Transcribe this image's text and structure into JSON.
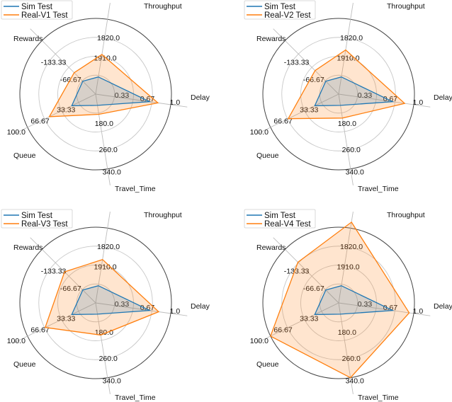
{
  "chart_data": [
    {
      "type": "radar",
      "axes": [
        "Throughput",
        "Delay",
        "Travel_Time",
        "Queue",
        "Rewards"
      ],
      "tick_labels": {
        "Throughput": [
          "1910.0",
          "1820.0"
        ],
        "Delay": [
          "0.33",
          "0.67",
          "1.0"
        ],
        "Travel_Time": [
          "180.0",
          "260.0",
          "340.0"
        ],
        "Queue": [
          "33.33",
          "66.67",
          "100.0"
        ],
        "Rewards": [
          "-66.67",
          "-133.33"
        ]
      },
      "grid": true,
      "legend_position": "top-left",
      "series": [
        {
          "name": "Sim Test",
          "color": "#1f77b4",
          "values": [
            0.23,
            0.72,
            0.15,
            0.35,
            0.24
          ]
        },
        {
          "name": "Real-V1 Test",
          "color": "#ff7f0e",
          "values": [
            0.53,
            0.83,
            0.27,
            0.68,
            0.4
          ]
        }
      ]
    },
    {
      "type": "radar",
      "axes": [
        "Throughput",
        "Delay",
        "Travel_Time",
        "Queue",
        "Rewards"
      ],
      "tick_labels": {
        "Throughput": [
          "1910.0",
          "1820.0"
        ],
        "Delay": [
          "0.33",
          "0.67",
          "1.0"
        ],
        "Travel_Time": [
          "180.0",
          "260.0",
          "340.0"
        ],
        "Queue": [
          "33.33",
          "66.67",
          "100.0"
        ],
        "Rewards": [
          "-66.67",
          "-133.33"
        ]
      },
      "grid": true,
      "legend_position": "top-left",
      "series": [
        {
          "name": "Sim Test",
          "color": "#1f77b4",
          "values": [
            0.23,
            0.72,
            0.15,
            0.35,
            0.24
          ]
        },
        {
          "name": "Real-V2 Test",
          "color": "#ff7f0e",
          "values": [
            0.59,
            0.88,
            0.32,
            0.74,
            0.44
          ]
        }
      ]
    },
    {
      "type": "radar",
      "axes": [
        "Throughput",
        "Delay",
        "Travel_Time",
        "Queue",
        "Rewards"
      ],
      "tick_labels": {
        "Throughput": [
          "1910.0",
          "1820.0"
        ],
        "Delay": [
          "0.33",
          "0.67",
          "1.0"
        ],
        "Travel_Time": [
          "180.0",
          "260.0",
          "340.0"
        ],
        "Queue": [
          "33.33",
          "66.67",
          "100.0"
        ],
        "Rewards": [
          "-66.67",
          "-133.33"
        ]
      },
      "grid": true,
      "legend_position": "top-left",
      "series": [
        {
          "name": "Sim Test",
          "color": "#1f77b4",
          "values": [
            0.23,
            0.72,
            0.15,
            0.35,
            0.24
          ]
        },
        {
          "name": "Real-V3 Test",
          "color": "#ff7f0e",
          "values": [
            0.58,
            0.84,
            0.43,
            0.74,
            0.58
          ]
        }
      ]
    },
    {
      "type": "radar",
      "axes": [
        "Throughput",
        "Delay",
        "Travel_Time",
        "Queue",
        "Rewards"
      ],
      "tick_labels": {
        "Throughput": [
          "1910.0",
          "1820.0"
        ],
        "Delay": [
          "0.33",
          "0.67",
          "1.0"
        ],
        "Travel_Time": [
          "180.0",
          "260.0",
          "340.0"
        ],
        "Queue": [
          "33.33",
          "66.67",
          "100.0"
        ],
        "Rewards": [
          "-66.67",
          "-133.33"
        ]
      },
      "grid": true,
      "legend_position": "top-left",
      "series": [
        {
          "name": "Sim Test",
          "color": "#1f77b4",
          "values": [
            0.23,
            0.72,
            0.15,
            0.35,
            0.24
          ]
        },
        {
          "name": "Real-V4 Test",
          "color": "#ff7f0e",
          "values": [
            1.08,
            0.94,
            1.0,
            1.0,
            0.76
          ]
        }
      ]
    }
  ]
}
